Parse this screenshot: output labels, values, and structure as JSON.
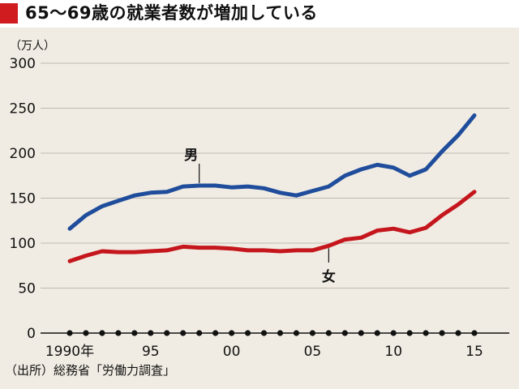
{
  "title": "65～69歳の就業者数が増加している",
  "source": "（出所）総務省「労働力調査」",
  "colors": {
    "male": "#1f4d9c",
    "female": "#c4161c",
    "accent": "#d01c1f"
  },
  "chart_data": {
    "type": "line",
    "title": "65～69歳の就業者数が増加している",
    "ylabel": "（万人）",
    "ylim": [
      0,
      300
    ],
    "yticks": [
      0,
      50,
      100,
      150,
      200,
      250,
      300
    ],
    "x": [
      1990,
      1991,
      1992,
      1993,
      1994,
      1995,
      1996,
      1997,
      1998,
      1999,
      2000,
      2001,
      2002,
      2003,
      2004,
      2005,
      2006,
      2007,
      2008,
      2009,
      2010,
      2011,
      2012,
      2013,
      2014,
      2015
    ],
    "xtick_values": [
      1990,
      1995,
      2000,
      2005,
      2010,
      2015
    ],
    "xtick_labels": [
      "1990年",
      "95",
      "00",
      "05",
      "10",
      "15"
    ],
    "grid": "horizontal",
    "series": [
      {
        "name": "男",
        "color": "#1f4d9c",
        "values": [
          116,
          131,
          141,
          147,
          153,
          156,
          157,
          163,
          164,
          164,
          162,
          163,
          161,
          156,
          153,
          158,
          163,
          175,
          182,
          187,
          184,
          175,
          182,
          202,
          220,
          242
        ]
      },
      {
        "name": "女",
        "color": "#c4161c",
        "values": [
          80,
          86,
          91,
          90,
          90,
          91,
          92,
          96,
          95,
          95,
          94,
          92,
          92,
          91,
          92,
          92,
          97,
          104,
          106,
          114,
          116,
          112,
          117,
          131,
          143,
          157
        ]
      }
    ]
  }
}
